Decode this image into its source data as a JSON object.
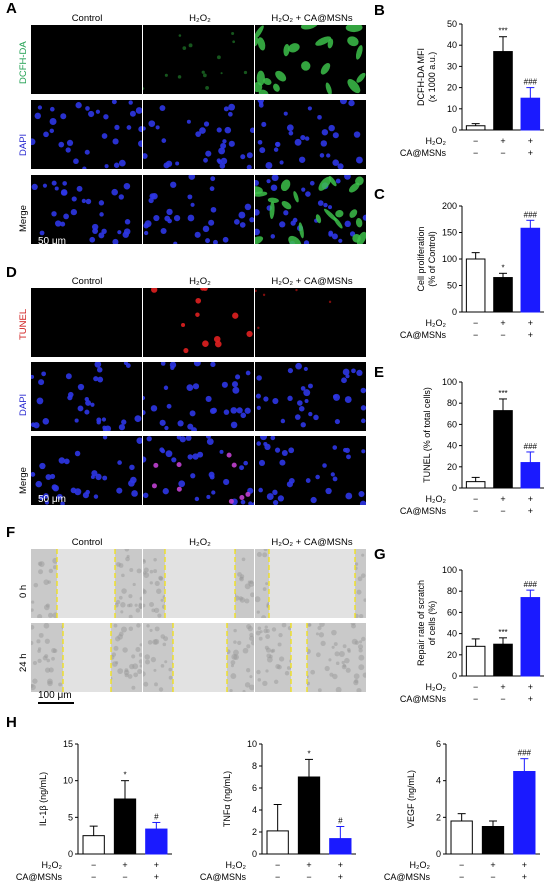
{
  "panels": {
    "A": {
      "label": "A",
      "columns": [
        "Control",
        "H₂O₂",
        "H₂O₂ + CA@MSNs"
      ],
      "rows": [
        "DCFH-DA",
        "DAPI",
        "Merge"
      ],
      "scale": "50 μm",
      "colors": {
        "DCFH-DA": "#22a052",
        "DAPI": "#2a2ad0",
        "Merge": "#000000"
      }
    },
    "D": {
      "label": "D",
      "columns": [
        "Control",
        "H₂O₂",
        "H₂O₂ + CA@MSNs"
      ],
      "rows": [
        "TUNEL",
        "DAPI",
        "Merge"
      ],
      "scale": "50 μm",
      "colors": {
        "TUNEL": "#d02020",
        "DAPI": "#2a2ad0",
        "Merge": "#000000"
      }
    },
    "F": {
      "label": "F",
      "columns": [
        "Control",
        "H₂O₂",
        "H₂O₂ + CA@MSNs"
      ],
      "rows": [
        "0 h",
        "24 h"
      ],
      "scale": "100 μm"
    },
    "H": {
      "label": "H"
    }
  },
  "treatment": {
    "row_labels": [
      "H₂O₂",
      "CA@MSNs"
    ],
    "h2o2": [
      "−",
      "+",
      "+"
    ],
    "camsns": [
      "−",
      "−",
      "+"
    ]
  },
  "bar_colors": [
    "#ffffff",
    "#000000",
    "#1a1aff"
  ],
  "chart_data": [
    {
      "id": "B",
      "type": "bar",
      "ylabel": "DCFH-DA MFI",
      "ylabel2": "(x 1000 a.u.)",
      "ylim": [
        0,
        50
      ],
      "ticks": [
        0,
        10,
        20,
        30,
        40,
        50
      ],
      "values": [
        2,
        37,
        15
      ],
      "errors": [
        1,
        7,
        5
      ],
      "annotations": [
        "",
        "***",
        "###"
      ]
    },
    {
      "id": "C",
      "type": "bar",
      "ylabel": "Cell proliferation",
      "ylabel2": "(% of Control)",
      "ylim": [
        0,
        200
      ],
      "ticks": [
        0,
        50,
        100,
        150,
        200
      ],
      "values": [
        100,
        65,
        158
      ],
      "errors": [
        12,
        8,
        15
      ],
      "annotations": [
        "",
        "*",
        "###"
      ]
    },
    {
      "id": "E",
      "type": "bar",
      "ylabel": "TUNEL (% of total cells)",
      "ylabel2": "",
      "ylim": [
        0,
        100
      ],
      "ticks": [
        0,
        20,
        40,
        60,
        80,
        100
      ],
      "values": [
        6,
        73,
        24
      ],
      "errors": [
        4,
        11,
        10
      ],
      "annotations": [
        "",
        "***",
        "###"
      ]
    },
    {
      "id": "G",
      "type": "bar",
      "ylabel": "Repair rate of scratch",
      "ylabel2": "of cells (%)",
      "ylim": [
        0,
        100
      ],
      "ticks": [
        0,
        20,
        40,
        60,
        80,
        100
      ],
      "values": [
        28,
        30,
        74
      ],
      "errors": [
        7,
        6,
        7
      ],
      "annotations": [
        "",
        "***",
        "###"
      ]
    },
    {
      "id": "H1",
      "type": "bar",
      "ylabel": "IL-1β (ng/mL)",
      "ylabel2": "",
      "ylim": [
        0,
        15
      ],
      "ticks": [
        0,
        5,
        10,
        15
      ],
      "values": [
        2.5,
        7.5,
        3.4
      ],
      "errors": [
        1.3,
        2.5,
        0.9
      ],
      "annotations": [
        "",
        "*",
        "#"
      ]
    },
    {
      "id": "H2",
      "type": "bar",
      "ylabel": "TNFα (ng/mL)",
      "ylabel2": "",
      "ylim": [
        0,
        10
      ],
      "ticks": [
        0,
        2,
        4,
        6,
        8,
        10
      ],
      "values": [
        2.1,
        7.0,
        1.4
      ],
      "errors": [
        2.4,
        1.6,
        1.1
      ],
      "annotations": [
        "",
        "*",
        "#"
      ]
    },
    {
      "id": "H3",
      "type": "bar",
      "ylabel": "VEGF (ng/mL)",
      "ylabel2": "",
      "ylim": [
        0,
        6
      ],
      "ticks": [
        0,
        2,
        4,
        6
      ],
      "values": [
        1.8,
        1.5,
        4.5
      ],
      "errors": [
        0.4,
        0.3,
        0.7
      ],
      "annotations": [
        "",
        "",
        "###"
      ]
    }
  ]
}
